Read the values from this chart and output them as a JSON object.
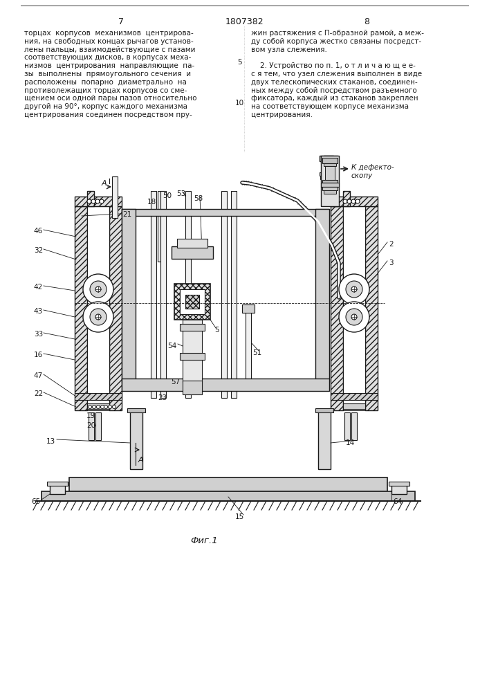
{
  "page_number_left": "7",
  "patent_number": "1807382",
  "page_number_right": "8",
  "line_number_5": "5",
  "line_number_10": "10",
  "figure_label": "Фиг.1",
  "bg_color": "#ffffff",
  "text_color": "#1a1a1a",
  "dc": "#1a1a1a",
  "hatch_color": "#555555",
  "left_text_lines": [
    "торцах  корпусов  механизмов  центрирова-",
    "ния, на свободных концах рычагов установ-",
    "лены пальцы, взаимодействующие с пазами",
    "соответствующих дисков, в корпусах меха-",
    "низмов  центрирования  направляющие  па-",
    "зы  выполнены  прямоугольного сечения  и",
    "расположены  попарно  диаметрально  на",
    "противолежащих торцах корпусов со сме-",
    "щением оси одной пары пазов относительно",
    "другой на 90°, корпус каждого механизма",
    "центрирования соединен посредством пру-"
  ],
  "right_text_lines": [
    "жин растяжения с П-образной рамой, а меж-",
    "ду собой корпуса жестко связаны посредст-",
    "вом узла слежения.",
    "",
    "    2. Устройство по п. 1, о т л и ч а ю щ е е-",
    "с я тем, что узел слежения выполнен в виде",
    "двух телескопических стаканов, соединен-",
    "ных между собой посредством разъемного",
    "фиксатора, каждый из стаканов закреплен",
    "на соответствующем корпусе механизма",
    "центрирования."
  ]
}
